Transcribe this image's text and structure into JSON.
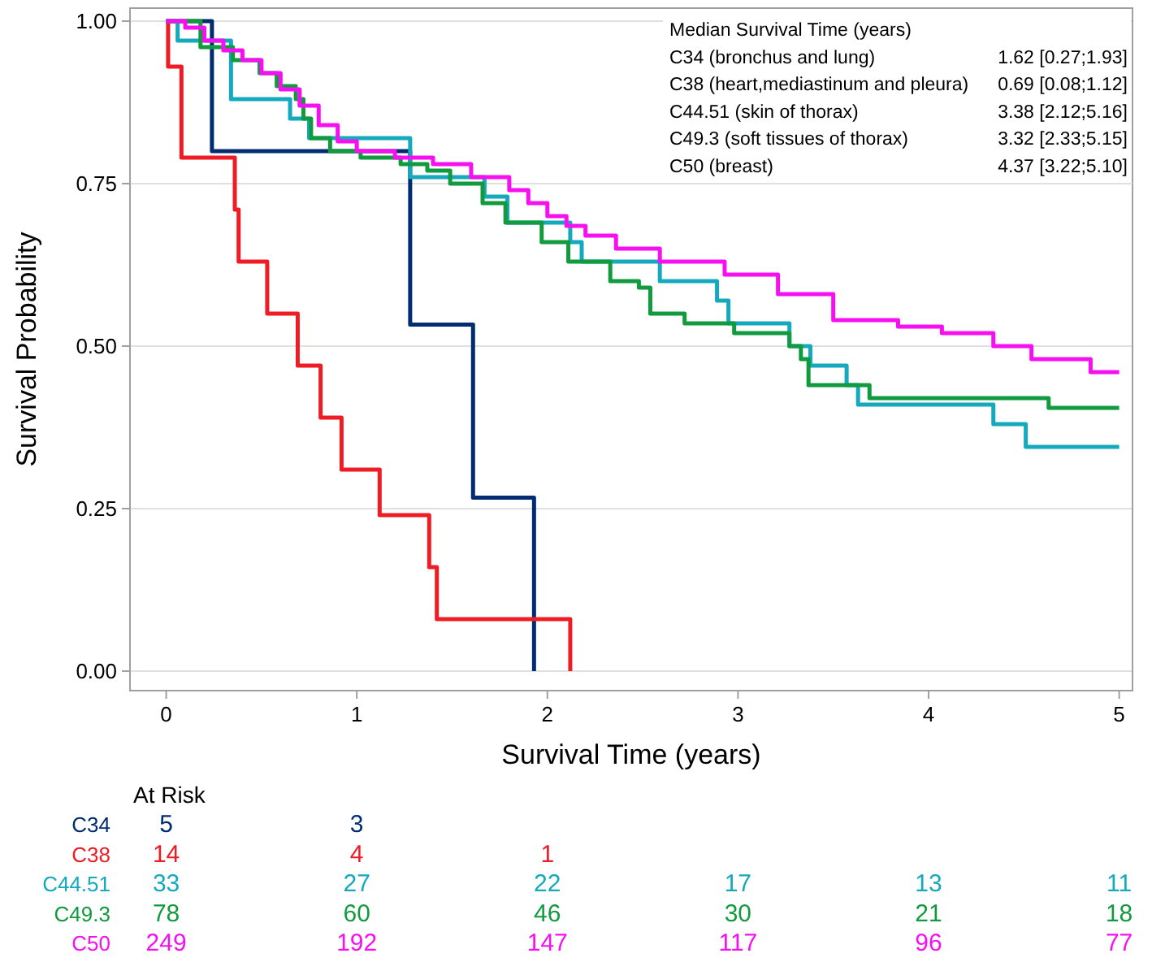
{
  "chart_data": [
    {
      "type": "step",
      "xlabel": "Survival Time (years)",
      "ylabel": "Survival Probability",
      "xlim": [
        -0.19,
        5.07
      ],
      "ylim": [
        -0.03,
        1.02
      ],
      "xticks": [
        0,
        1,
        2,
        3,
        4,
        5
      ],
      "yticks": [
        {
          "value": 0,
          "label": "0.00"
        },
        {
          "value": 0.25,
          "label": "0.25"
        },
        {
          "value": 0.5,
          "label": "0.50"
        },
        {
          "value": 0.75,
          "label": "0.75"
        },
        {
          "value": 1,
          "label": "1.00"
        }
      ],
      "grid": "y",
      "line_style": "solid",
      "marker": "none",
      "series": [
        {
          "color": "#002d72",
          "x": [
            0,
            0.24,
            1.28,
            1.61,
            1.93
          ],
          "values": [
            1,
            0.8,
            0.533,
            0.267,
            0
          ]
        },
        {
          "color": "#ee1c25",
          "x": [
            0,
            0.01,
            0.08,
            0.36,
            0.38,
            0.53,
            0.69,
            0.81,
            0.92,
            1.12,
            1.38,
            1.42,
            2.12
          ],
          "values": [
            1,
            0.93,
            0.79,
            0.71,
            0.63,
            0.55,
            0.47,
            0.39,
            0.31,
            0.24,
            0.16,
            0.08,
            0
          ]
        },
        {
          "color": "#14a9bd",
          "x": [
            0,
            0.06,
            0.34,
            0.65,
            0.75,
            1.28,
            1.67,
            1.79,
            2.12,
            2.18,
            2.59,
            2.89,
            2.95,
            3.27,
            3.38,
            3.57,
            3.63,
            4.34,
            4.51,
            5.0
          ],
          "values": [
            1,
            0.97,
            0.88,
            0.85,
            0.82,
            0.76,
            0.73,
            0.69,
            0.66,
            0.63,
            0.6,
            0.57,
            0.535,
            0.5,
            0.47,
            0.44,
            0.41,
            0.38,
            0.345,
            0.345
          ]
        },
        {
          "color": "#119a3e",
          "x": [
            0,
            0.18,
            0.35,
            0.49,
            0.58,
            0.68,
            0.72,
            0.76,
            0.86,
            1.02,
            1.23,
            1.37,
            1.49,
            1.66,
            1.78,
            1.97,
            2.11,
            2.33,
            2.48,
            2.54,
            2.72,
            2.98,
            3.27,
            3.33,
            3.37,
            3.69,
            4.63,
            5.0
          ],
          "values": [
            1,
            0.96,
            0.94,
            0.92,
            0.9,
            0.88,
            0.85,
            0.82,
            0.8,
            0.79,
            0.78,
            0.77,
            0.75,
            0.72,
            0.69,
            0.66,
            0.63,
            0.6,
            0.59,
            0.55,
            0.535,
            0.52,
            0.5,
            0.48,
            0.44,
            0.42,
            0.405,
            0.405
          ]
        },
        {
          "color": "#f70ff2",
          "x": [
            0,
            0.1,
            0.2,
            0.3,
            0.4,
            0.5,
            0.6,
            0.7,
            0.8,
            0.9,
            1.0,
            1.2,
            1.4,
            1.6,
            1.8,
            1.9,
            2.0,
            2.1,
            2.2,
            2.36,
            2.59,
            2.93,
            3.21,
            3.5,
            3.84,
            4.07,
            4.34,
            4.54,
            4.85,
            5.0
          ],
          "values": [
            1,
            0.99,
            0.97,
            0.955,
            0.94,
            0.92,
            0.895,
            0.87,
            0.84,
            0.815,
            0.8,
            0.79,
            0.78,
            0.76,
            0.74,
            0.72,
            0.7,
            0.685,
            0.67,
            0.65,
            0.63,
            0.61,
            0.58,
            0.54,
            0.53,
            0.52,
            0.5,
            0.48,
            0.46,
            0.46
          ]
        }
      ],
      "annotations": [
        "Median Survival Time (years)",
        "C34 (bronchus and lung)",
        "1.62 [0.27;1.93]",
        "C38 (heart,mediastinum and pleura)",
        "0.69 [0.08;1.12]",
        "C44.51 (skin of thorax)",
        "3.38 [2.12;5.16]",
        "C49.3 (soft tissues of thorax)",
        "3.32 [2.33;5.15]",
        "C50 (breast)",
        "4.37 [3.22;5.10]"
      ]
    },
    {
      "type": "other",
      "title": "At Risk",
      "categories": [
        null,
        null,
        null,
        null,
        null,
        null
      ],
      "y_categories": [
        "C34",
        "C38",
        "C44.51",
        "C49.3",
        "C50"
      ],
      "colors": [
        "#002d72",
        "#ee1c25",
        "#14a9bd",
        "#119a3e",
        "#f70ff2"
      ],
      "cell_labels": [
        [
          "5",
          "3",
          null,
          null,
          null,
          null
        ],
        [
          "14",
          "4",
          "1",
          null,
          null,
          null
        ],
        [
          "33",
          "27",
          "22",
          "17",
          "13",
          "11"
        ],
        [
          "78",
          "60",
          "46",
          "30",
          "21",
          "18"
        ],
        [
          "249",
          "192",
          "147",
          "117",
          "96",
          "77"
        ]
      ]
    }
  ]
}
